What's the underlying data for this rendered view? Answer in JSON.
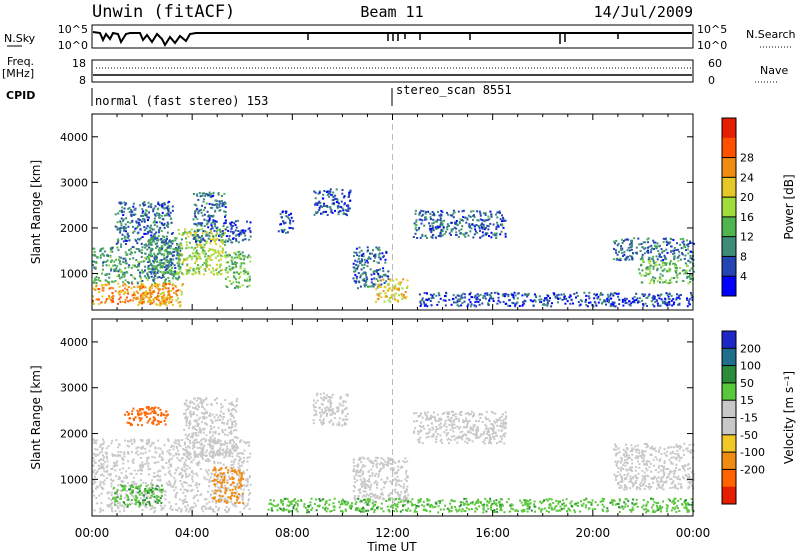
{
  "header": {
    "station": "Unwin (fitACF)",
    "beam": "Beam 11",
    "date": "14/Jul/2009"
  },
  "status_panels": {
    "nsky_label": "N.Sky",
    "nsky_ticks": [
      "10^5",
      "10^0"
    ],
    "nsearch_label": "N.Search",
    "nsearch_ticks": [
      "10^5",
      "10^0"
    ],
    "freq_label": "Freq.",
    "freq_unit": "[MHz]",
    "freq_ticks": [
      "18",
      "8"
    ],
    "nave_label": "Nave",
    "nave_ticks": [
      "60",
      "0"
    ],
    "cpid_label": "CPID",
    "cpid_segments": [
      {
        "text": "normal (fast stereo) 153",
        "start_hour": 0
      },
      {
        "text": "stereo_scan 8551",
        "start_hour": 12
      }
    ]
  },
  "chart_data": [
    {
      "type": "heatmap",
      "name": "power",
      "xlabel": "",
      "ylabel": "Slant Range [km]",
      "xlim": [
        0,
        24
      ],
      "ylim": [
        200,
        4500
      ],
      "yticks": [
        1000,
        2000,
        3000,
        4000
      ],
      "colorbar": {
        "label": "Power [dB]",
        "ticks": [
          4,
          8,
          12,
          16,
          20,
          24,
          28
        ],
        "colors": [
          "#0000ff",
          "#2346b4",
          "#3c8c78",
          "#50b450",
          "#a0dc3c",
          "#e6c828",
          "#f08c14",
          "#ff5000",
          "#e61e00"
        ]
      },
      "regions": [
        {
          "t0": 0.0,
          "t1": 3.2,
          "r0": 350,
          "r1": 800,
          "level": 26
        },
        {
          "t0": 0.0,
          "t1": 3.5,
          "r0": 800,
          "r1": 1600,
          "level": 12
        },
        {
          "t0": 0.9,
          "t1": 3.2,
          "r0": 1600,
          "r1": 2600,
          "level": 8
        },
        {
          "t0": 1.8,
          "t1": 3.6,
          "r0": 300,
          "r1": 800,
          "level": 24
        },
        {
          "t0": 2.2,
          "t1": 3.6,
          "r0": 1000,
          "r1": 1800,
          "level": 10
        },
        {
          "t0": 3.4,
          "t1": 5.3,
          "r0": 1000,
          "r1": 2000,
          "level": 18
        },
        {
          "t0": 4.0,
          "t1": 5.3,
          "r0": 1700,
          "r1": 2800,
          "level": 8
        },
        {
          "t0": 5.3,
          "t1": 6.3,
          "r0": 700,
          "r1": 1500,
          "level": 14
        },
        {
          "t0": 5.3,
          "t1": 6.3,
          "r0": 1700,
          "r1": 2200,
          "level": 6
        },
        {
          "t0": 7.4,
          "t1": 8.0,
          "r0": 1900,
          "r1": 2400,
          "level": 6
        },
        {
          "t0": 8.8,
          "t1": 10.3,
          "r0": 2300,
          "r1": 2900,
          "level": 6
        },
        {
          "t0": 10.4,
          "t1": 11.8,
          "r0": 700,
          "r1": 1600,
          "level": 8
        },
        {
          "t0": 11.3,
          "t1": 12.6,
          "r0": 400,
          "r1": 900,
          "level": 22
        },
        {
          "t0": 12.8,
          "t1": 16.5,
          "r0": 1800,
          "r1": 2400,
          "level": 8
        },
        {
          "t0": 13.0,
          "t1": 16.5,
          "r0": 300,
          "r1": 600,
          "level": 6
        },
        {
          "t0": 16.5,
          "t1": 24.0,
          "r0": 300,
          "r1": 600,
          "level": 6
        },
        {
          "t0": 20.8,
          "t1": 24.0,
          "r0": 1300,
          "r1": 1800,
          "level": 8
        },
        {
          "t0": 21.8,
          "t1": 24.0,
          "r0": 800,
          "r1": 1300,
          "level": 14
        }
      ]
    },
    {
      "type": "heatmap",
      "name": "velocity",
      "xlabel": "Time UT",
      "ylabel": "Slant Range [km]",
      "xlim": [
        0,
        24
      ],
      "ylim": [
        200,
        4500
      ],
      "yticks": [
        1000,
        2000,
        3000,
        4000
      ],
      "xticklabels": [
        "00:00",
        "04:00",
        "08:00",
        "12:00",
        "16:00",
        "20:00",
        "00:00"
      ],
      "xtick_hours": [
        0,
        4,
        8,
        12,
        16,
        20,
        24
      ],
      "colorbar": {
        "label": "Velocity [m s⁻¹]",
        "ticks": [
          200,
          100,
          50,
          15,
          -15,
          -50,
          -100,
          -200
        ],
        "colors": [
          "#1e28c8",
          "#1e6e8c",
          "#2d8c3c",
          "#5ac83c",
          "#c8c8c8",
          "#c8c8c8",
          "#f0c828",
          "#f08c14",
          "#ff6400",
          "#e61e00"
        ]
      },
      "regions": [
        {
          "t0": 0.0,
          "t1": 6.3,
          "r0": 300,
          "r1": 1900,
          "level": 0
        },
        {
          "t0": 0.8,
          "t1": 2.8,
          "r0": 400,
          "r1": 900,
          "level": 45
        },
        {
          "t0": 1.2,
          "t1": 3.0,
          "r0": 2200,
          "r1": 2600,
          "level": -180
        },
        {
          "t0": 3.6,
          "t1": 5.8,
          "r0": 1500,
          "r1": 2800,
          "level": 0
        },
        {
          "t0": 4.8,
          "t1": 6.0,
          "r0": 500,
          "r1": 1300,
          "level": -80
        },
        {
          "t0": 8.8,
          "t1": 10.2,
          "r0": 2200,
          "r1": 2900,
          "level": 0
        },
        {
          "t0": 10.4,
          "t1": 12.6,
          "r0": 500,
          "r1": 1500,
          "level": 0
        },
        {
          "t0": 12.8,
          "t1": 16.5,
          "r0": 1800,
          "r1": 2500,
          "level": 0
        },
        {
          "t0": 7.0,
          "t1": 24.0,
          "r0": 300,
          "r1": 600,
          "level": 40
        },
        {
          "t0": 20.8,
          "t1": 24.0,
          "r0": 800,
          "r1": 1800,
          "level": 0
        }
      ]
    }
  ]
}
